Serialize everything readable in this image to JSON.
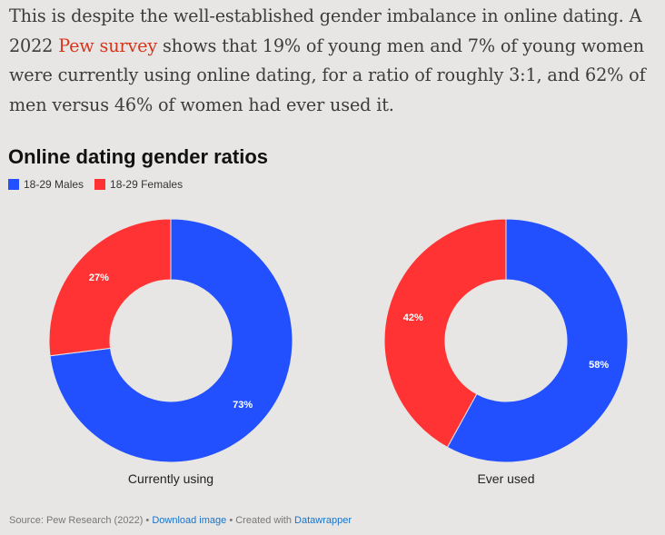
{
  "article": {
    "text_before_link": "This is despite the well-established gender imbalance in online dating. A 2022 ",
    "link_text": "Pew survey",
    "text_after_link": " shows that 19% of young men and 7% of young women were currently using online dating, for a ratio of roughly 3:1, and 62% of men versus 46% of women had ever used it."
  },
  "colors": {
    "males": "#2350ff",
    "females": "#ff3333",
    "link": "#d7361c"
  },
  "chart_data": {
    "type": "pie",
    "title": "Online dating gender ratios",
    "legend": [
      "18-29 Males",
      "18-29 Females"
    ],
    "legend_placement": "top-left",
    "donut": true,
    "charts": [
      {
        "caption": "Currently using",
        "slices": [
          {
            "name": "18-29 Males",
            "value": 73,
            "label": "73%"
          },
          {
            "name": "18-29 Females",
            "value": 27,
            "label": "27%"
          }
        ]
      },
      {
        "caption": "Ever used",
        "slices": [
          {
            "name": "18-29 Males",
            "value": 58,
            "label": "58%"
          },
          {
            "name": "18-29 Females",
            "value": 42,
            "label": "42%"
          }
        ]
      }
    ]
  },
  "footer": {
    "source": "Source: Pew Research (2022) • ",
    "download": "Download image",
    "sep": " • Created with ",
    "datawrapper": "Datawrapper"
  }
}
